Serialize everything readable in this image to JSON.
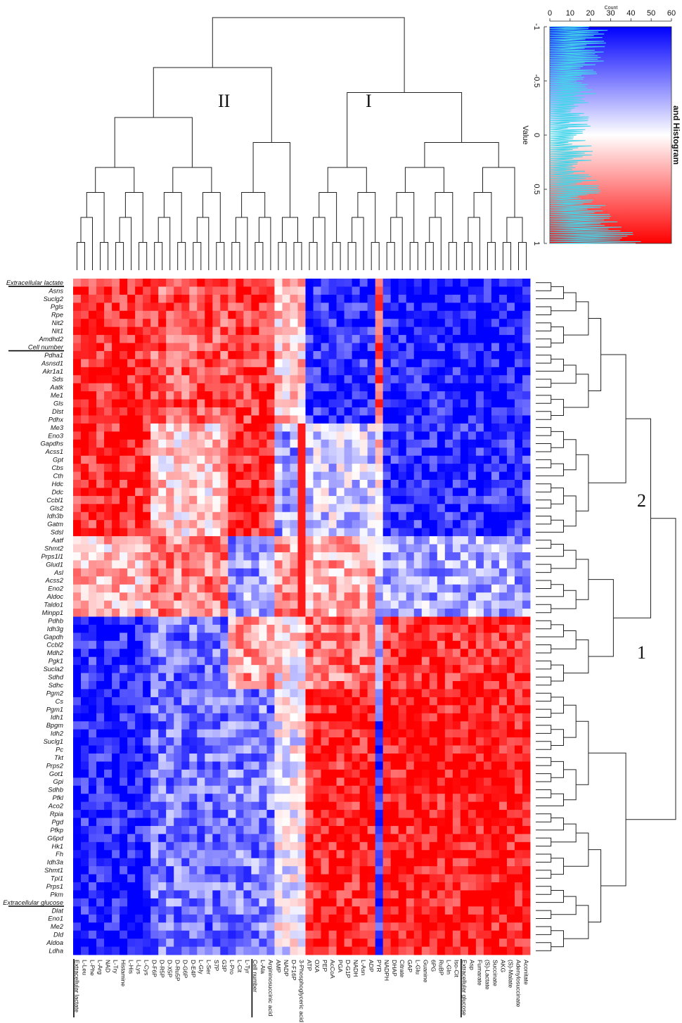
{
  "chart_data": {
    "type": "heatmap",
    "rows": [
      "Extracellular lactate",
      "Asns",
      "Suclg2",
      "Pgls",
      "Rpe",
      "Nit2",
      "Nit1",
      "Amdhd2",
      "Cell number",
      "Pdha1",
      "Asnsd1",
      "Akr1a1",
      "Sds",
      "Aatk",
      "Me1",
      "Gls",
      "Dlst",
      "Pdhx",
      "Me3",
      "Eno3",
      "Gapdhs",
      "Acss1",
      "Gpt",
      "Cbs",
      "Cth",
      "Hdc",
      "Ddc",
      "Ccbl1",
      "Gls2",
      "Idh3b",
      "Gatm",
      "Sdsl",
      "Aatf",
      "Shmt2",
      "Prps1l1",
      "Glud1",
      "Asl",
      "Acss2",
      "Eno2",
      "Aldoc",
      "Taldo1",
      "Minpp1",
      "Pdhb",
      "Idh3g",
      "Gapdh",
      "Ccbl2",
      "Mdh2",
      "Pgk1",
      "Sucla2",
      "Sdhd",
      "Sdhc",
      "Pgm2",
      "Cs",
      "Pgm1",
      "Idh1",
      "Bpgm",
      "Idh2",
      "Suclg1",
      "Pc",
      "Tkt",
      "Prps2",
      "Got1",
      "Gpi",
      "Sdhb",
      "Pfkl",
      "Aco2",
      "Rpia",
      "Pgd",
      "Pfkp",
      "G6pd",
      "Hk1",
      "Fh",
      "Idh3a",
      "Shmt1",
      "Tpi1",
      "Prps1",
      "Pkm",
      "Extracellular glucose",
      "Dlat",
      "Eno1",
      "Me2",
      "Dld",
      "Aldoa",
      "Ldha"
    ],
    "columns": [
      "Extracellular lactate",
      "L-Leu",
      "L-Phe",
      "L-Arg",
      "NAD",
      "L-Try",
      "Histamine",
      "L-His",
      "L-Lys",
      "L-Cys",
      "D-F6P",
      "D-R5P",
      "D-X5P",
      "D-Ru5P",
      "D-G6P",
      "D-E4P",
      "L-Gly",
      "L-Ser",
      "S7P",
      "G3P",
      "L-Pro",
      "L-Cit",
      "L-Tyr",
      "Cell number",
      "L-Ala",
      "Argininosuccinic acid",
      "AMP",
      "NADP",
      "D-F16P",
      "3-Phosphoglyceric acid",
      "ATP",
      "OXA",
      "PEP",
      "AcCoA",
      "PGA",
      "D-G1P",
      "NADH",
      "L-Asn",
      "ADP",
      "PYR",
      "NADPH",
      "DHAP",
      "Citrate",
      "GAP",
      "L-Glu",
      "Guanine",
      "6PG",
      "RuBP",
      "L-Gln",
      "Iso-Cit",
      "Extracellular glucose",
      "Asp",
      "Fumarate",
      "(S)-Lactate",
      "Succinate",
      "AKG",
      "(S)-Malate",
      "Adenylosuccinate",
      "Aconitate"
    ],
    "row_underlined": [
      "Extracellular lactate",
      "Cell number",
      "Extracellular glucose"
    ],
    "column_underlined": [
      "Extracellular lactate",
      "Cell number",
      "Extracellular glucose"
    ],
    "value_range": [
      -1,
      1
    ],
    "colorscale": {
      "low": "#0000ff",
      "mid": "#ffffff",
      "high": "#ff0000"
    },
    "histogram_color": "#43d6ea",
    "row_clusters": [
      {
        "label": "2",
        "rows": "Extracellular lactate – Sdsl"
      },
      {
        "label": "1",
        "rows": "Aatf – Ldha"
      }
    ],
    "column_clusters": [
      {
        "label": "II",
        "columns": "Extracellular lactate – Argininosuccinic acid"
      },
      {
        "label": "I",
        "columns": "AMP – Aconitate"
      }
    ],
    "color_key": {
      "title": "and Histogram",
      "value_label": "Value",
      "count_label": "Count",
      "value_ticks": [
        "-1",
        "-0.5",
        "0",
        "0.5",
        "1"
      ],
      "count_ticks": [
        "0",
        "10",
        "20",
        "30",
        "40",
        "50",
        "60"
      ],
      "count_range": [
        0,
        60
      ]
    }
  }
}
